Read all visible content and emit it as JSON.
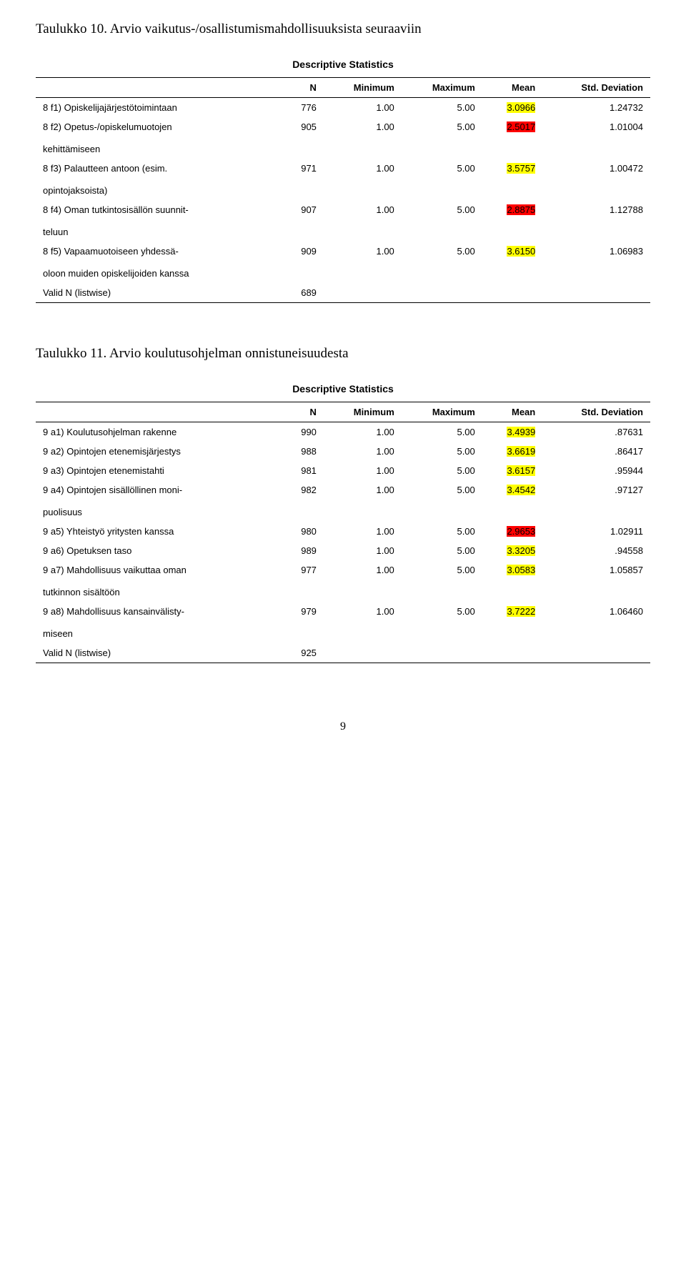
{
  "title1": "Taulukko 10. Arvio vaikutus-/osallistumismahdollisuuksista seuraaviin",
  "title2": "Taulukko 11. Arvio koulutusohjelman onnistuneisuudesta",
  "stats_label": "Descriptive Statistics",
  "columns": {
    "n": "N",
    "min": "Minimum",
    "max": "Maximum",
    "mean": "Mean",
    "std": "Std. Deviation"
  },
  "table1": {
    "rows": [
      {
        "label": "8 f1) Opiskelijajärjestötoimintaan",
        "n": "776",
        "min": "1.00",
        "max": "5.00",
        "mean": "3.0966",
        "mean_hl": "yellow",
        "std": "1.24732"
      },
      {
        "label": "8 f2) Opetus-/opiskelumuotojen",
        "sub": "kehittämiseen",
        "n": "905",
        "min": "1.00",
        "max": "5.00",
        "mean": "2.5017",
        "mean_hl": "red",
        "std": "1.01004"
      },
      {
        "label": "8 f3) Palautteen antoon (esim.",
        "sub": "opintojaksoista)",
        "n": "971",
        "min": "1.00",
        "max": "5.00",
        "mean": "3.5757",
        "mean_hl": "yellow",
        "std": "1.00472"
      },
      {
        "label": "8 f4) Oman tutkintosisällön suunnit-",
        "sub": "teluun",
        "n": "907",
        "min": "1.00",
        "max": "5.00",
        "mean": "2.8875",
        "mean_hl": "red",
        "std": "1.12788"
      },
      {
        "label": "8 f5) Vapaamuotoiseen yhdessä-",
        "sub": "oloon muiden opiskelijoiden kanssa",
        "n": "909",
        "min": "1.00",
        "max": "5.00",
        "mean": "3.6150",
        "mean_hl": "yellow",
        "std": "1.06983"
      }
    ],
    "valid_label": "Valid N (listwise)",
    "valid_n": "689"
  },
  "table2": {
    "rows": [
      {
        "label": "9 a1) Koulutusohjelman rakenne",
        "n": "990",
        "min": "1.00",
        "max": "5.00",
        "mean": "3.4939",
        "mean_hl": "yellow",
        "std": ".87631"
      },
      {
        "label": "9 a2) Opintojen etenemisjärjestys",
        "n": "988",
        "min": "1.00",
        "max": "5.00",
        "mean": "3.6619",
        "mean_hl": "yellow",
        "std": ".86417"
      },
      {
        "label": "9 a3) Opintojen etenemistahti",
        "n": "981",
        "min": "1.00",
        "max": "5.00",
        "mean": "3.6157",
        "mean_hl": "yellow",
        "std": ".95944"
      },
      {
        "label": "9 a4) Opintojen sisällöllinen moni-",
        "sub": "puolisuus",
        "n": "982",
        "min": "1.00",
        "max": "5.00",
        "mean": "3.4542",
        "mean_hl": "yellow",
        "std": ".97127"
      },
      {
        "label": "9 a5) Yhteistyö yritysten kanssa",
        "n": "980",
        "min": "1.00",
        "max": "5.00",
        "mean": "2.9653",
        "mean_hl": "red",
        "std": "1.02911"
      },
      {
        "label": "9 a6) Opetuksen taso",
        "n": "989",
        "min": "1.00",
        "max": "5.00",
        "mean": "3.3205",
        "mean_hl": "yellow",
        "std": ".94558"
      },
      {
        "label": "9 a7) Mahdollisuus vaikuttaa oman",
        "sub": "tutkinnon sisältöön",
        "n": "977",
        "min": "1.00",
        "max": "5.00",
        "mean": "3.0583",
        "mean_hl": "yellow",
        "std": "1.05857"
      },
      {
        "label": "9 a8) Mahdollisuus kansainvälisty-",
        "sub": "miseen",
        "n": "979",
        "min": "1.00",
        "max": "5.00",
        "mean": "3.7222",
        "mean_hl": "yellow",
        "std": "1.06460"
      }
    ],
    "valid_label": "Valid N (listwise)",
    "valid_n": "925"
  },
  "page_number": "9"
}
